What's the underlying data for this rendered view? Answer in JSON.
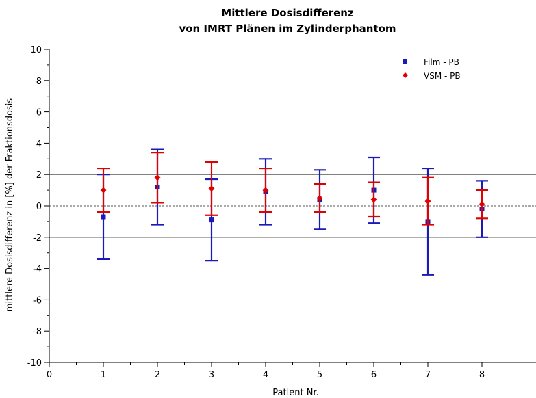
{
  "chart_data": {
    "type": "scatter",
    "title": [
      "Mittlere Dosisdifferenz",
      "von IMRT Plänen im Zylinderphantom"
    ],
    "xlabel": "Patient Nr.",
    "ylabel": "mittlere Dosisdifferenz in [%] der Fraktionsdosis",
    "xlim": [
      0,
      9
    ],
    "ylim": [
      -10,
      10
    ],
    "xticks": [
      0,
      1,
      2,
      3,
      4,
      5,
      6,
      7,
      8
    ],
    "yticks": [
      -10,
      -8,
      -6,
      -4,
      -2,
      0,
      2,
      4,
      6,
      8,
      10
    ],
    "reference_lines": [
      {
        "y": 2,
        "style": "solid",
        "color": "#7f7f7f"
      },
      {
        "y": -2,
        "style": "solid",
        "color": "#7f7f7f"
      },
      {
        "y": 0,
        "style": "dashed",
        "color": "#555555"
      }
    ],
    "legend_position": "top-right",
    "series": [
      {
        "name": "Film - PB",
        "color": "#1a1ab8",
        "marker": "square",
        "x": [
          1,
          2,
          3,
          4,
          5,
          6,
          7,
          8
        ],
        "y": [
          -0.7,
          1.2,
          -0.9,
          0.9,
          0.4,
          1.0,
          -1.0,
          -0.2
        ],
        "err_low": [
          -3.4,
          -1.2,
          -3.5,
          -1.2,
          -1.5,
          -1.1,
          -4.4,
          -2.0
        ],
        "err_high": [
          2.0,
          3.6,
          1.7,
          3.0,
          2.3,
          3.1,
          2.4,
          1.6
        ]
      },
      {
        "name": "VSM - PB",
        "color": "#e00000",
        "marker": "diamond",
        "x": [
          1,
          2,
          3,
          4,
          5,
          6,
          7,
          8
        ],
        "y": [
          1.0,
          1.8,
          1.1,
          1.0,
          0.5,
          0.4,
          0.3,
          0.1
        ],
        "err_low": [
          -0.4,
          0.2,
          -0.6,
          -0.4,
          -0.4,
          -0.7,
          -1.2,
          -0.8
        ],
        "err_high": [
          2.4,
          3.4,
          2.8,
          2.4,
          1.4,
          1.5,
          1.8,
          1.0
        ]
      }
    ]
  }
}
